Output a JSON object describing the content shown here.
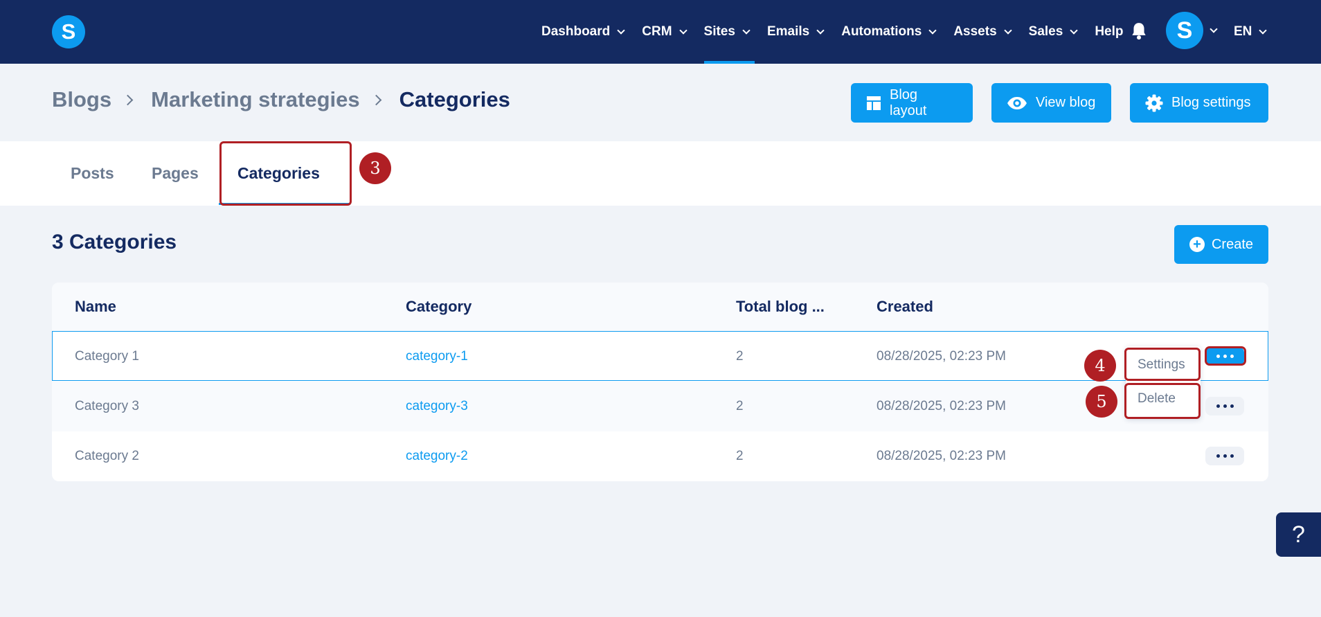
{
  "app": {
    "logo_letter": "S"
  },
  "nav": {
    "items": [
      {
        "label": "Dashboard",
        "has_menu": true
      },
      {
        "label": "CRM",
        "has_menu": true
      },
      {
        "label": "Sites",
        "has_menu": true,
        "active": true
      },
      {
        "label": "Emails",
        "has_menu": true
      },
      {
        "label": "Automations",
        "has_menu": true
      },
      {
        "label": "Assets",
        "has_menu": true
      },
      {
        "label": "Sales",
        "has_menu": true
      },
      {
        "label": "Help",
        "has_menu": false
      }
    ],
    "avatar_letter": "S",
    "language": "EN"
  },
  "breadcrumb": {
    "items": [
      "Blogs",
      "Marketing strategies"
    ],
    "current": "Categories"
  },
  "header_buttons": {
    "layout": "Blog layout",
    "view": "View blog",
    "settings": "Blog settings"
  },
  "tabs": [
    {
      "label": "Posts"
    },
    {
      "label": "Pages"
    },
    {
      "label": "Categories",
      "active": true
    }
  ],
  "section": {
    "title": "3 Categories",
    "create_label": "Create"
  },
  "table": {
    "headers": [
      "Name",
      "Category",
      "Total blog ...",
      "Created"
    ],
    "rows": [
      {
        "name": "Category 1",
        "slug": "category-1",
        "total": "2",
        "created": "08/28/2025, 02:23 PM"
      },
      {
        "name": "Category 3",
        "slug": "category-3",
        "total": "2",
        "created": "08/28/2025, 02:23 PM"
      },
      {
        "name": "Category 2",
        "slug": "category-2",
        "total": "2",
        "created": "08/28/2025, 02:23 PM"
      }
    ]
  },
  "dropdown": {
    "settings": "Settings",
    "delete": "Delete"
  },
  "annotations": {
    "tab_step": "3",
    "settings_step": "4",
    "delete_step": "5"
  },
  "help": {
    "label": "?"
  },
  "colors": {
    "nav_bg": "#142a61",
    "accent": "#0c9bf0",
    "page_bg": "#f0f3f8",
    "annotation": "#b01f24",
    "muted_text": "#6b7a90"
  }
}
